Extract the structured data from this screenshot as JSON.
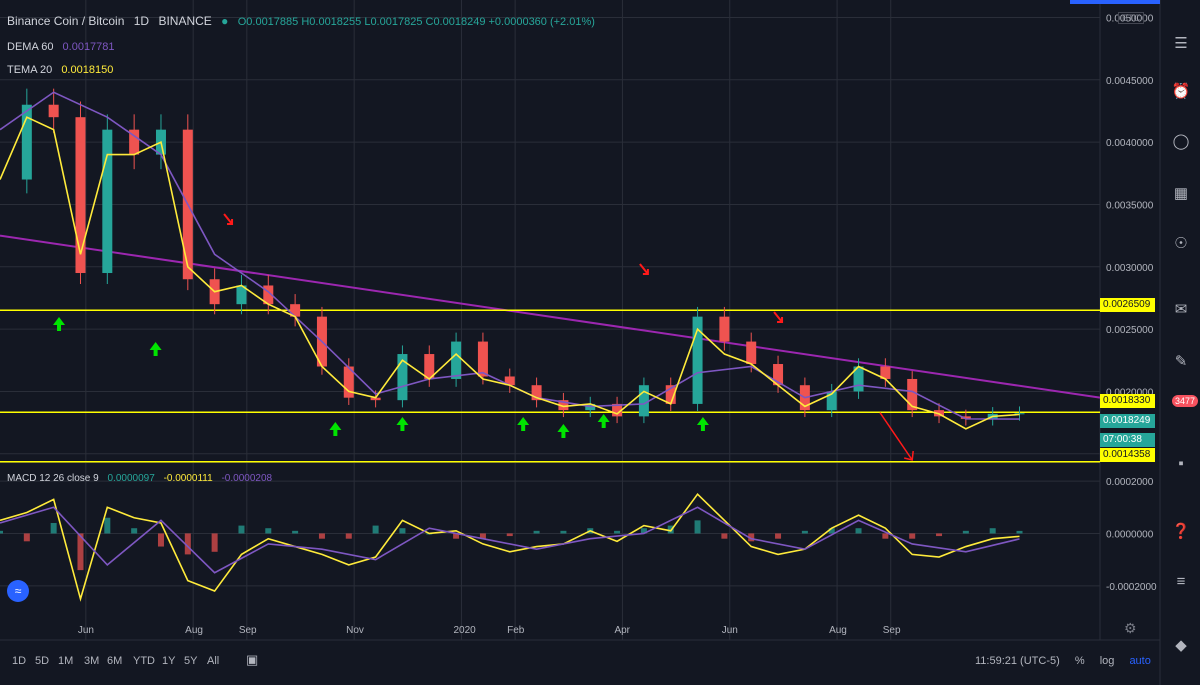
{
  "header": {
    "symbol": "Binance Coin / Bitcoin",
    "interval": "1D",
    "exchange": "BINANCE",
    "ohlc": "O0.0017885 H0.0018255 L0.0017825 C0.0018249 +0.0000360 (+2.01%)",
    "currency_badge": "BTC"
  },
  "indicators": {
    "dema_label": "DEMA 60",
    "dema_value": "0.0017781",
    "tema_label": "TEMA 20",
    "tema_value": "0.0018150",
    "macd_label": "MACD 12 26 close 9",
    "macd_hist": "0.0000097",
    "macd_line": "-0.0000111",
    "macd_signal": "-0.0000208"
  },
  "price_tags": {
    "resistance": "0.0026509",
    "support": "0.0018330",
    "last": "0.0018249",
    "countdown": "07:00:38",
    "low": "0.0014358"
  },
  "timeframes": [
    "1D",
    "5D",
    "1M",
    "3M",
    "6M",
    "YTD",
    "1Y",
    "5Y",
    "All"
  ],
  "footer": {
    "clock": "11:59:21 (UTC-5)",
    "percent": "%",
    "log": "log",
    "auto": "auto"
  },
  "sidebar_badge": "3477",
  "colors": {
    "background": "#131722",
    "up": "#26a69a",
    "down": "#ef5350",
    "dema": "#7e57c2",
    "tema": "#ffeb3b",
    "trendline": "#9c27b0",
    "level": "#ffff00",
    "arrow_up": "#00e400",
    "arrow_down": "#ff1a1a"
  },
  "chart_data": [
    {
      "type": "line",
      "title": "Binance Coin / Bitcoin 1D BINANCE",
      "x_ticks": [
        "Jun",
        "Aug",
        "Sep",
        "Nov",
        "2020",
        "Feb",
        "Apr",
        "Jun",
        "Aug",
        "Sep"
      ],
      "y_ticks": [
        "0.0050000",
        "0.0045000",
        "0.0040000",
        "0.0035000",
        "0.0030000",
        "0.0025000",
        "0.0020000",
        "0.0015000"
      ],
      "ylim": [
        0.00145,
        0.0051
      ],
      "series": [
        {
          "name": "Close",
          "x": [
            0,
            10,
            20,
            30,
            40,
            50,
            60,
            70,
            80,
            90,
            100,
            110,
            120,
            130,
            140,
            150,
            160,
            170,
            180,
            190,
            200,
            210,
            220,
            230,
            240,
            250,
            260,
            270,
            280,
            290,
            300,
            310,
            320,
            330,
            340,
            350,
            360,
            370,
            380
          ],
          "values": [
            0.0037,
            0.0043,
            0.0042,
            0.00295,
            0.0041,
            0.0039,
            0.0041,
            0.0029,
            0.0027,
            0.00285,
            0.0027,
            0.0026,
            0.0022,
            0.00195,
            0.00193,
            0.0023,
            0.0021,
            0.0024,
            0.00212,
            0.00205,
            0.00193,
            0.00185,
            0.0019,
            0.0018,
            0.00205,
            0.0019,
            0.0026,
            0.0024,
            0.00222,
            0.00205,
            0.00185,
            0.002,
            0.0022,
            0.0021,
            0.00185,
            0.0018,
            0.00178,
            0.00182,
            0.0018249
          ]
        },
        {
          "name": "DEMA 60",
          "x": [
            0,
            20,
            40,
            60,
            80,
            100,
            120,
            140,
            160,
            180,
            200,
            220,
            240,
            260,
            280,
            300,
            320,
            340,
            360,
            380
          ],
          "values": [
            0.0041,
            0.0044,
            0.0042,
            0.0039,
            0.0031,
            0.0028,
            0.0024,
            0.00198,
            0.0021,
            0.00215,
            0.00195,
            0.00188,
            0.0019,
            0.00215,
            0.0022,
            0.00195,
            0.00205,
            0.002,
            0.00178,
            0.0017781
          ]
        },
        {
          "name": "TEMA 20",
          "x": [
            0,
            10,
            20,
            30,
            40,
            50,
            60,
            70,
            80,
            90,
            100,
            110,
            120,
            130,
            140,
            150,
            160,
            170,
            180,
            190,
            200,
            210,
            220,
            230,
            240,
            250,
            260,
            270,
            280,
            290,
            300,
            310,
            320,
            330,
            340,
            350,
            360,
            370,
            380
          ],
          "values": [
            0.0037,
            0.0042,
            0.0041,
            0.0031,
            0.0039,
            0.0039,
            0.004,
            0.003,
            0.0028,
            0.00285,
            0.0027,
            0.0026,
            0.0022,
            0.002,
            0.00195,
            0.00225,
            0.0021,
            0.0023,
            0.0021,
            0.00205,
            0.00195,
            0.00188,
            0.0019,
            0.00182,
            0.002,
            0.0019,
            0.0025,
            0.0023,
            0.00222,
            0.00205,
            0.00188,
            0.00198,
            0.0022,
            0.0021,
            0.00188,
            0.00182,
            0.0017,
            0.0018,
            0.001815
          ]
        }
      ],
      "levels": [
        0.0026509,
        0.001833,
        0.0014358
      ],
      "trendline": {
        "x": [
          0,
          410
        ],
        "values": [
          0.00325,
          0.00195
        ]
      },
      "arrows_up_x": [
        22,
        58,
        125,
        150,
        195,
        210,
        225,
        262
      ],
      "arrows_down_x": [
        85,
        240,
        290
      ],
      "projection": {
        "x": [
          328,
          340
        ],
        "values": [
          0.00183,
          0.00145
        ]
      }
    },
    {
      "type": "bar",
      "title": "MACD 12 26 close 9",
      "y_ticks": [
        "0.0002000",
        "0.0000000",
        "-0.0002000"
      ],
      "ylim": [
        -0.0003,
        0.00025
      ],
      "series": [
        {
          "name": "MACD",
          "x": [
            0,
            10,
            20,
            30,
            40,
            50,
            60,
            70,
            80,
            90,
            100,
            110,
            120,
            130,
            140,
            150,
            160,
            170,
            180,
            190,
            200,
            210,
            220,
            230,
            240,
            250,
            260,
            270,
            280,
            290,
            300,
            310,
            320,
            330,
            340,
            350,
            360,
            370,
            380
          ],
          "values": [
            5e-05,
            8e-05,
            0.00013,
            -0.00025,
            0.0001,
            6e-05,
            4e-05,
            -0.00018,
            -0.00022,
            -8e-05,
            -2e-05,
            -5e-05,
            -8e-05,
            -0.00012,
            -9e-05,
            5e-05,
            0.0,
            1e-05,
            -4e-05,
            -7e-05,
            -5e-05,
            -4e-05,
            1e-05,
            -3e-05,
            3e-05,
            1e-05,
            0.00015,
            5e-05,
            -5e-05,
            -8e-05,
            -6e-05,
            2e-05,
            7e-05,
            2e-05,
            -8e-05,
            -9e-05,
            -5e-05,
            -2e-05,
            -1.11e-05
          ]
        },
        {
          "name": "Signal",
          "x": [
            0,
            20,
            40,
            60,
            80,
            100,
            120,
            140,
            160,
            180,
            200,
            220,
            240,
            260,
            280,
            300,
            320,
            340,
            360,
            380
          ],
          "values": [
            4e-05,
            0.0001,
            -0.00012,
            5e-05,
            -0.00015,
            -4e-05,
            -6e-05,
            -0.0001,
            2e-05,
            -2e-05,
            -6e-05,
            -2e-05,
            0.0,
            0.0001,
            -2e-05,
            -6e-05,
            5e-05,
            -4e-05,
            -7e-05,
            -2.08e-05
          ]
        }
      ],
      "histogram": [
        1e-05,
        -3e-05,
        4e-05,
        -0.00014,
        6e-05,
        2e-05,
        -5e-05,
        -8e-05,
        -7e-05,
        3e-05,
        2e-05,
        1e-05,
        -2e-05,
        -2e-05,
        3e-05,
        2e-05,
        0.0,
        -2e-05,
        -2e-05,
        -1e-05,
        1e-05,
        1e-05,
        2e-05,
        1e-05,
        2e-05,
        3e-05,
        5e-05,
        -2e-05,
        -3e-05,
        -2e-05,
        1e-05,
        2e-05,
        2e-05,
        -2e-05,
        -2e-05,
        -1e-05,
        1e-05,
        2e-05,
        9.7e-06
      ]
    }
  ]
}
